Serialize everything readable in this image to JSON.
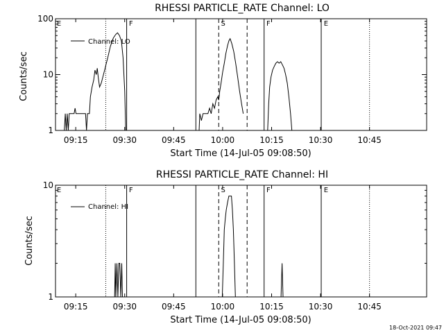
{
  "footer": {
    "timestamp": "18-Oct-2021 09:47"
  },
  "chart_data": [
    {
      "type": "line",
      "title": "RHESSI PARTICLE_RATE Channel: LO",
      "xlabel": "Start Time (14-Jul-05 09:08:50)",
      "ylabel": "Counts/sec",
      "y_scale": "log",
      "ylim": [
        1,
        100
      ],
      "yticks": [
        {
          "v": 1,
          "label": "1"
        },
        {
          "v": 10,
          "label": "10"
        },
        {
          "v": 100,
          "label": "100"
        }
      ],
      "xlim": [
        8.8,
        122.5
      ],
      "xticks": [
        {
          "v": 15,
          "label": "09:15"
        },
        {
          "v": 30,
          "label": "09:30"
        },
        {
          "v": 45,
          "label": "09:45"
        },
        {
          "v": 60,
          "label": "10:00"
        },
        {
          "v": 75,
          "label": "10:15"
        },
        {
          "v": 90,
          "label": "10:30"
        },
        {
          "v": 105,
          "label": "10:45"
        }
      ],
      "legend": {
        "label": "Channel: LO",
        "position": "top-left"
      },
      "markers": [
        {
          "x": 24.2,
          "style": "dotted"
        },
        {
          "x": 30.6,
          "style": "solid"
        },
        {
          "x": 51.8,
          "style": "solid"
        },
        {
          "x": 58.8,
          "style": "dashed"
        },
        {
          "x": 67.5,
          "style": "dashed"
        },
        {
          "x": 72.7,
          "style": "solid"
        },
        {
          "x": 90.2,
          "style": "solid"
        },
        {
          "x": 105.0,
          "style": "dotted"
        }
      ],
      "region_labels": [
        {
          "text": "E",
          "x": 9.2
        },
        {
          "text": "F",
          "x": 31.3
        },
        {
          "text": "S",
          "x": 59.5
        },
        {
          "text": "F",
          "x": 73.4
        },
        {
          "text": "E",
          "x": 91.0
        }
      ],
      "series": [
        {
          "segments": [
            [
              [
                11.5,
                1.0
              ],
              [
                11.8,
                2.0
              ],
              [
                12.1,
                1.0
              ],
              [
                12.4,
                2.0
              ],
              [
                12.7,
                1.0
              ],
              [
                13.0,
                2.0
              ],
              [
                14.0,
                2.0
              ],
              [
                14.5,
                2.0
              ],
              [
                14.8,
                2.5
              ],
              [
                15.1,
                2.0
              ],
              [
                16.0,
                2.0
              ],
              [
                17.0,
                2.0
              ],
              [
                18.0,
                2.0
              ],
              [
                18.3,
                1.0
              ],
              [
                18.6,
                2.0
              ],
              [
                19.2,
                2.0
              ],
              [
                19.5,
                4.0
              ],
              [
                20.0,
                6.0
              ],
              [
                20.5,
                8.0
              ],
              [
                20.9,
                12.0
              ],
              [
                21.3,
                10.0
              ],
              [
                21.6,
                13.0
              ],
              [
                21.9,
                9.0
              ],
              [
                22.3,
                6.0
              ],
              [
                22.8,
                7.0
              ],
              [
                23.3,
                9.0
              ],
              [
                24.0,
                13.0
              ],
              [
                24.8,
                20.0
              ],
              [
                25.6,
                32.0
              ],
              [
                26.5,
                45.0
              ],
              [
                27.2,
                52.0
              ],
              [
                27.8,
                56.0
              ],
              [
                28.4,
                50.0
              ],
              [
                29.0,
                40.0
              ],
              [
                29.5,
                20.0
              ],
              [
                30.0,
                5.0
              ],
              [
                30.3,
                1.0
              ]
            ],
            [
              [
                52.8,
                1.0
              ],
              [
                53.0,
                2.0
              ],
              [
                53.5,
                1.5
              ],
              [
                54.0,
                2.0
              ],
              [
                54.5,
                2.0
              ],
              [
                55.0,
                2.0
              ],
              [
                55.5,
                2.0
              ],
              [
                56.0,
                2.5
              ],
              [
                56.5,
                2.0
              ],
              [
                57.0,
                3.0
              ],
              [
                57.5,
                2.5
              ],
              [
                58.0,
                3.5
              ],
              [
                58.5,
                4.0
              ],
              [
                58.8,
                3.5
              ],
              [
                59.1,
                5.0
              ],
              [
                59.5,
                7.0
              ],
              [
                60.0,
                11.0
              ],
              [
                60.5,
                16.0
              ],
              [
                61.0,
                24.0
              ],
              [
                61.5,
                33.0
              ],
              [
                61.9,
                40.0
              ],
              [
                62.3,
                44.0
              ],
              [
                62.8,
                36.0
              ],
              [
                63.4,
                26.0
              ],
              [
                64.0,
                16.0
              ],
              [
                64.6,
                9.0
              ],
              [
                65.2,
                5.0
              ],
              [
                65.8,
                3.0
              ],
              [
                66.3,
                2.0
              ]
            ],
            [
              [
                73.8,
                1.0
              ],
              [
                74.1,
                3.0
              ],
              [
                74.4,
                6.0
              ],
              [
                74.8,
                9.0
              ],
              [
                75.3,
                12.0
              ],
              [
                75.8,
                14.0
              ],
              [
                76.3,
                16.0
              ],
              [
                76.8,
                17.0
              ],
              [
                77.3,
                16.0
              ],
              [
                77.8,
                17.0
              ],
              [
                78.3,
                15.0
              ],
              [
                78.8,
                13.0
              ],
              [
                79.3,
                10.0
              ],
              [
                79.8,
                7.0
              ],
              [
                80.3,
                4.0
              ],
              [
                80.8,
                2.0
              ],
              [
                81.2,
                1.0
              ]
            ]
          ]
        }
      ]
    },
    {
      "type": "line",
      "title": "RHESSI PARTICLE_RATE Channel: HI",
      "xlabel": "Start Time (14-Jul-05 09:08:50)",
      "ylabel": "Counts/sec",
      "y_scale": "log",
      "ylim": [
        1,
        10
      ],
      "yticks": [
        {
          "v": 1,
          "label": "1"
        },
        {
          "v": 10,
          "label": "10"
        }
      ],
      "xlim": [
        8.8,
        122.5
      ],
      "xticks": [
        {
          "v": 15,
          "label": "09:15"
        },
        {
          "v": 30,
          "label": "09:30"
        },
        {
          "v": 45,
          "label": "09:45"
        },
        {
          "v": 60,
          "label": "10:00"
        },
        {
          "v": 75,
          "label": "10:15"
        },
        {
          "v": 90,
          "label": "10:30"
        },
        {
          "v": 105,
          "label": "10:45"
        }
      ],
      "legend": {
        "label": "Channel: HI",
        "position": "top-left"
      },
      "markers": [
        {
          "x": 24.2,
          "style": "dotted"
        },
        {
          "x": 30.6,
          "style": "solid"
        },
        {
          "x": 51.8,
          "style": "solid"
        },
        {
          "x": 58.8,
          "style": "dashed"
        },
        {
          "x": 67.5,
          "style": "dashed"
        },
        {
          "x": 72.7,
          "style": "solid"
        },
        {
          "x": 90.2,
          "style": "solid"
        },
        {
          "x": 105.0,
          "style": "dotted"
        }
      ],
      "region_labels": [
        {
          "text": "E",
          "x": 9.2
        },
        {
          "text": "F",
          "x": 31.3
        },
        {
          "text": "S",
          "x": 59.5
        },
        {
          "text": "F",
          "x": 73.4
        },
        {
          "text": "E",
          "x": 91.0
        }
      ],
      "series": [
        {
          "segments": [
            [
              [
                26.9,
                1.0
              ],
              [
                27.1,
                2.0
              ],
              [
                27.3,
                1.0
              ],
              [
                27.6,
                2.0
              ],
              [
                27.9,
                1.0
              ],
              [
                28.2,
                2.0
              ],
              [
                28.5,
                2.0
              ],
              [
                28.8,
                1.0
              ],
              [
                29.1,
                2.0
              ],
              [
                29.3,
                1.0
              ]
            ],
            [
              [
                59.9,
                1.0
              ],
              [
                60.2,
                2.0
              ],
              [
                60.5,
                4.0
              ],
              [
                60.8,
                5.0
              ],
              [
                61.1,
                6.0
              ],
              [
                61.5,
                7.0
              ],
              [
                61.9,
                8.0
              ],
              [
                62.3,
                8.0
              ],
              [
                62.7,
                8.0
              ],
              [
                63.0,
                6.0
              ],
              [
                63.3,
                4.0
              ],
              [
                63.6,
                2.0
              ],
              [
                63.9,
                1.0
              ]
            ],
            [
              [
                77.9,
                1.0
              ],
              [
                78.2,
                2.0
              ],
              [
                78.5,
                1.0
              ]
            ]
          ]
        }
      ]
    }
  ]
}
